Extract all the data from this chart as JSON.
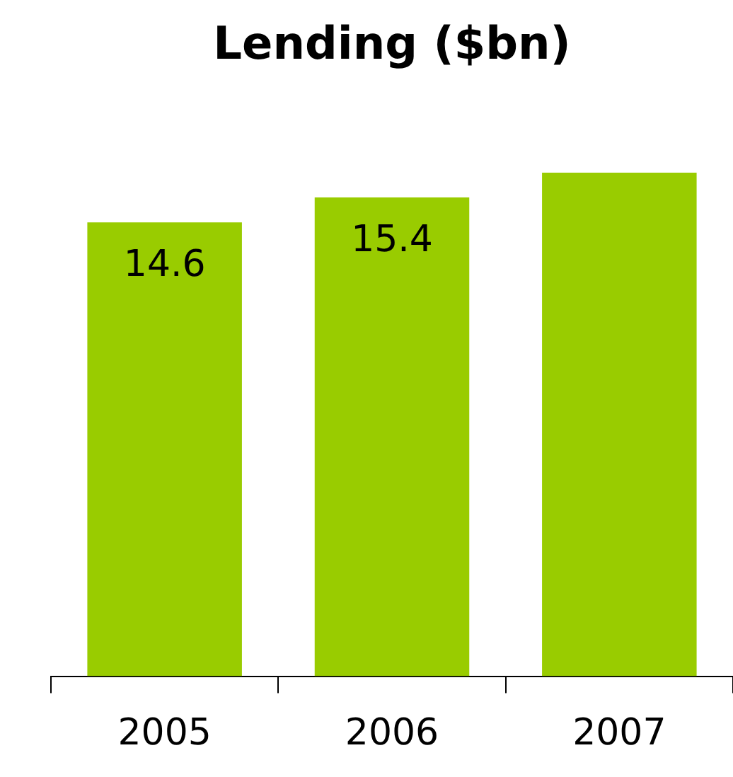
{
  "chart_data": {
    "type": "bar",
    "title": "Lending ($bn)",
    "categories": [
      "2005",
      "2006",
      "2007"
    ],
    "values": [
      14.6,
      15.4,
      16.2
    ],
    "value_labels": [
      "14.6",
      "15.4",
      null
    ],
    "color": "#99cc00",
    "tick_labels": "x",
    "grid": false,
    "legend": false
  }
}
